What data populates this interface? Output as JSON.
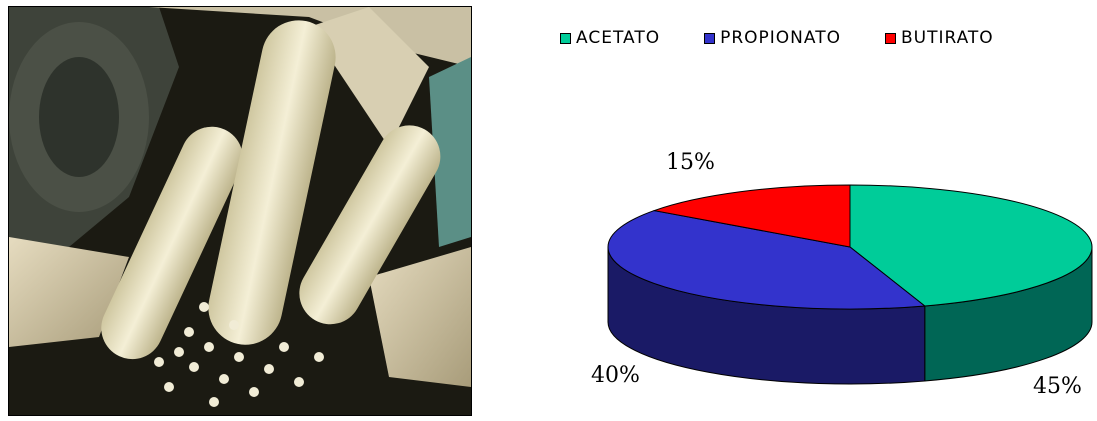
{
  "chart_data": {
    "type": "pie",
    "title": "",
    "legend_position": "top",
    "series": [
      {
        "name": "ACETATO",
        "value": 45,
        "label": "45%",
        "color": "#00cc99",
        "side_color": "#006655"
      },
      {
        "name": "PROPIONATO",
        "value": 40,
        "label": "40%",
        "color": "#3333cc",
        "side_color": "#1a1a66"
      },
      {
        "name": "BUTIRATO",
        "value": 15,
        "label": "15%",
        "color": "#ff0000",
        "side_color": "#880000"
      }
    ]
  },
  "photo": {
    "subject": "white-corn-image"
  }
}
